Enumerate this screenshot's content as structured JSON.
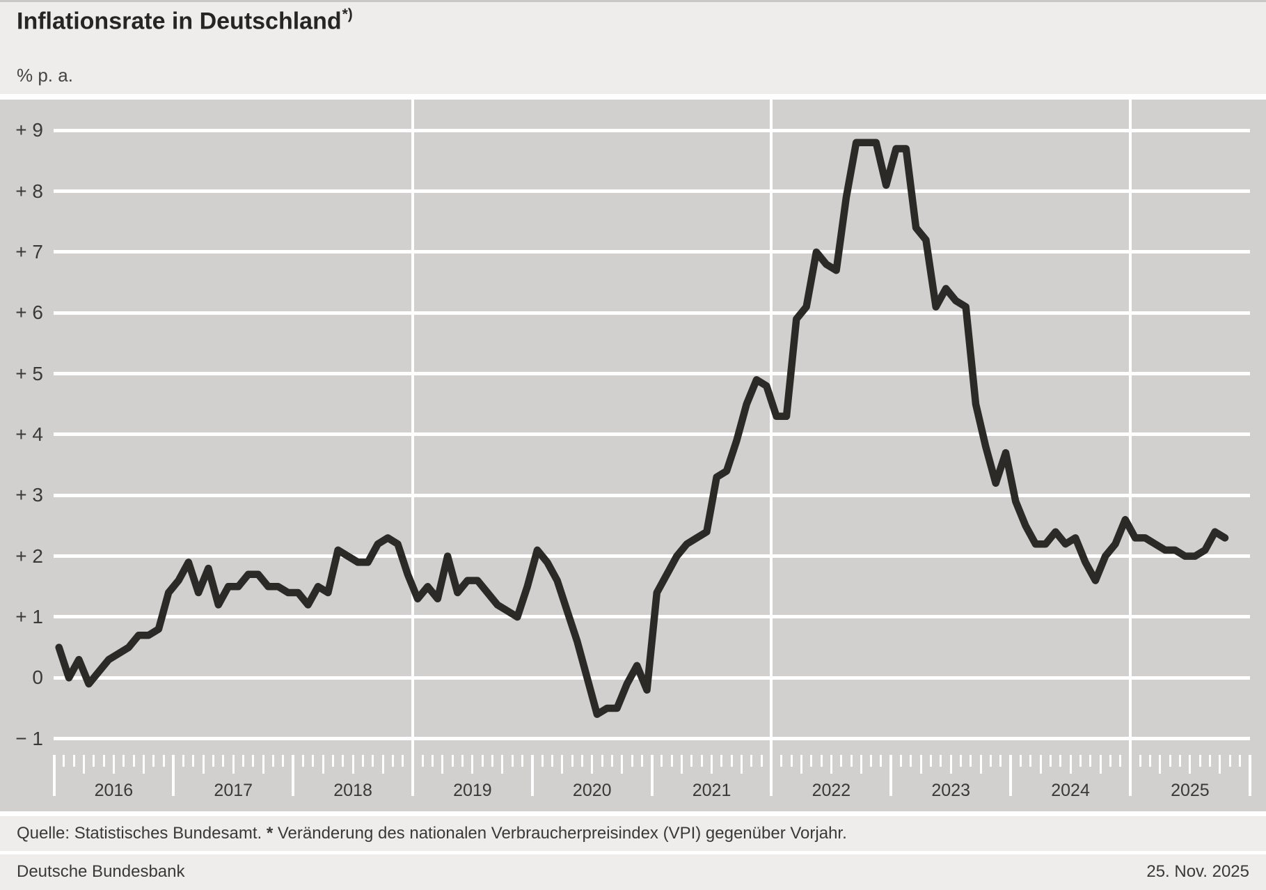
{
  "header": {
    "title": "Inflationsrate in Deutschland",
    "footnote_marker": "*)",
    "unit_label": "% p. a."
  },
  "chart_data": {
    "type": "line",
    "title": "Inflationsrate in Deutschland",
    "ylabel": "% p. a.",
    "frequency": "monthly",
    "x_start": "2016-01",
    "x_end": "2025-10",
    "ylim": [
      -1.3,
      9.5
    ],
    "grid": true,
    "legend_position": "none",
    "yticks": [
      {
        "label": "+ 9",
        "value": 9
      },
      {
        "label": "+ 8",
        "value": 8
      },
      {
        "label": "+ 7",
        "value": 7
      },
      {
        "label": "+ 6",
        "value": 6
      },
      {
        "label": "+ 5",
        "value": 5
      },
      {
        "label": "+ 4",
        "value": 4
      },
      {
        "label": "+ 3",
        "value": 3
      },
      {
        "label": "+ 2",
        "value": 2
      },
      {
        "label": "+ 1",
        "value": 1
      },
      {
        "label": "0",
        "value": 0
      },
      {
        "label": "− 1",
        "value": -1
      }
    ],
    "year_labels": [
      "2016",
      "2017",
      "2018",
      "2019",
      "2020",
      "2021",
      "2022",
      "2023",
      "2024",
      "2025"
    ],
    "vertical_gridline_years": [
      2019,
      2022,
      2025
    ],
    "series": [
      {
        "name": "Inflationsrate (Veränderung des VPI gegenüber Vorjahr)",
        "unit": "% p. a.",
        "values_by_year": [
          {
            "year": 2016,
            "values": [
              0.5,
              0.0,
              0.3,
              -0.1,
              0.1,
              0.3,
              0.4,
              0.5,
              0.7,
              0.7,
              0.8,
              1.4
            ]
          },
          {
            "year": 2017,
            "values": [
              1.6,
              1.9,
              1.4,
              1.8,
              1.2,
              1.5,
              1.5,
              1.7,
              1.7,
              1.5,
              1.5,
              1.4
            ]
          },
          {
            "year": 2018,
            "values": [
              1.4,
              1.2,
              1.5,
              1.4,
              2.1,
              2.0,
              1.9,
              1.9,
              2.2,
              2.3,
              2.2,
              1.7
            ]
          },
          {
            "year": 2019,
            "values": [
              1.3,
              1.5,
              1.3,
              2.0,
              1.4,
              1.6,
              1.6,
              1.4,
              1.2,
              1.1,
              1.0,
              1.5
            ]
          },
          {
            "year": 2020,
            "values": [
              2.1,
              1.9,
              1.6,
              1.1,
              0.6,
              0.0,
              -0.6,
              -0.5,
              -0.5,
              -0.1,
              0.2,
              -0.2
            ]
          },
          {
            "year": 2021,
            "values": [
              1.4,
              1.7,
              2.0,
              2.2,
              2.3,
              2.4,
              3.3,
              3.4,
              3.9,
              4.5,
              4.9,
              4.8
            ]
          },
          {
            "year": 2022,
            "values": [
              4.3,
              4.3,
              5.9,
              6.1,
              7.0,
              6.8,
              6.7,
              7.9,
              8.8,
              8.8,
              8.8,
              8.1
            ]
          },
          {
            "year": 2023,
            "values": [
              8.7,
              8.7,
              7.4,
              7.2,
              6.1,
              6.4,
              6.2,
              6.1,
              4.5,
              3.8,
              3.2,
              3.7
            ]
          },
          {
            "year": 2024,
            "values": [
              2.9,
              2.5,
              2.2,
              2.2,
              2.4,
              2.2,
              2.3,
              1.9,
              1.6,
              2.0,
              2.2,
              2.6
            ]
          },
          {
            "year": 2025,
            "values": [
              2.3,
              2.3,
              2.2,
              2.1,
              2.1,
              2.0,
              2.0,
              2.1,
              2.4,
              2.3
            ]
          }
        ]
      }
    ],
    "colors": {
      "page_background": "#eeedeb",
      "plot_background": "#d1d0ce",
      "gridline": "#ffffff",
      "line": "#2b2a27",
      "text": "#3a3938"
    }
  },
  "footer": {
    "source": "Quelle: Statistisches Bundesamt.",
    "footnote_marker": "*",
    "footnote": "Veränderung des nationalen Verbraucherpreisindex (VPI) gegenüber Vorjahr.",
    "publisher": "Deutsche Bundesbank",
    "date": "25. Nov. 2025"
  }
}
